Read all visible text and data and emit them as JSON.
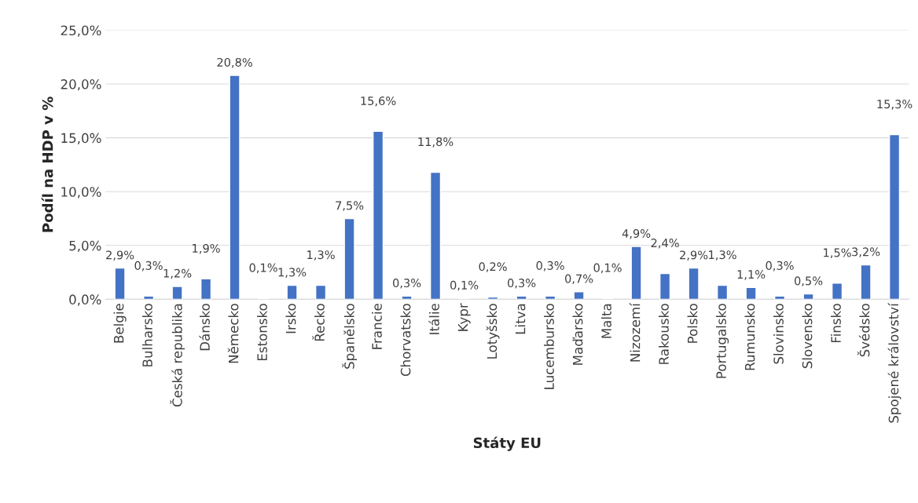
{
  "chart_data": {
    "type": "bar",
    "xlabel": "Státy EU",
    "ylabel": "Podíl na HDP v %",
    "categories": [
      "Belgie",
      "Bulharsko",
      "Česká republika",
      "Dánsko",
      "Německo",
      "Estonsko",
      "Irsko",
      "Řecko",
      "Španělsko",
      "Francie",
      "Chorvatsko",
      "Itálie",
      "Kypr",
      "Lotyšsko",
      "Litva",
      "Lucembursko",
      "Maďarsko",
      "Malta",
      "Nizozemí",
      "Rakousko",
      "Polsko",
      "Portugalsko",
      "Rumunsko",
      "Slovinsko",
      "Slovensko",
      "Finsko",
      "Švédsko",
      "Spojené království"
    ],
    "values": [
      2.9,
      0.3,
      1.2,
      1.9,
      20.8,
      0.1,
      1.3,
      1.3,
      7.5,
      15.6,
      0.3,
      11.8,
      0.1,
      0.2,
      0.3,
      0.3,
      0.7,
      0.1,
      4.9,
      2.4,
      2.9,
      1.3,
      1.1,
      0.3,
      0.5,
      1.5,
      3.2,
      15.3
    ],
    "value_labels": [
      "2,9%",
      "0,3%",
      "1,2%",
      "1,9%",
      "20,8%",
      "0,1%",
      "1,3%",
      "1,3%",
      "7,5%",
      "15,6%",
      "0,3%",
      "11,8%",
      "0,1%",
      "0,2%",
      "0,3%",
      "0,3%",
      "0,7%",
      "0,1%",
      "4,9%",
      "2,4%",
      "2,9%",
      "1,3%",
      "1,1%",
      "0,3%",
      "0,5%",
      "1,5%",
      "3,2%",
      "15,3%"
    ],
    "color": "#4472c4",
    "ylim": [
      0,
      25
    ],
    "yticks": [
      {
        "value": 0,
        "label": "0,0%"
      },
      {
        "value": 5,
        "label": "5,0%"
      },
      {
        "value": 10,
        "label": "10,0%"
      },
      {
        "value": 15,
        "label": "15,0%"
      },
      {
        "value": 20,
        "label": "20,0%"
      },
      {
        "value": 25,
        "label": "25,0%"
      }
    ],
    "grid": "y"
  }
}
